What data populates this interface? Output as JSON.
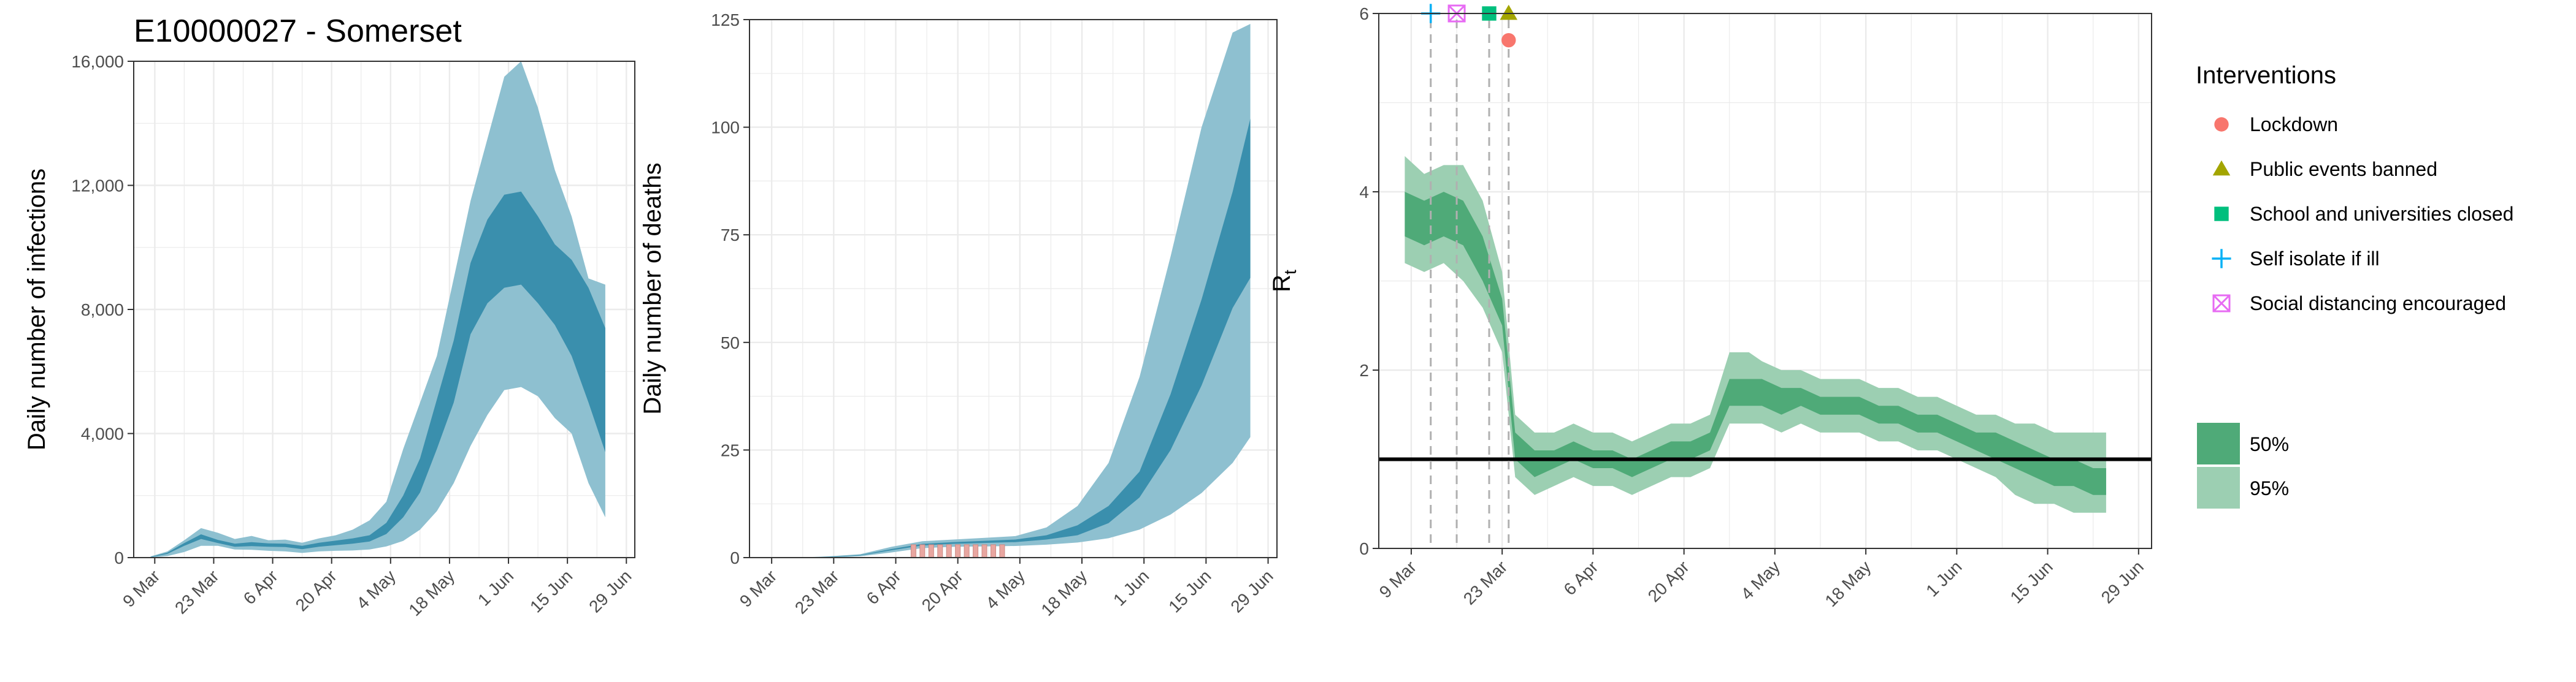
{
  "colors": {
    "infection_95": "#8ec0d0",
    "infection_50": "#3a8fad",
    "rt_95": "#9ccfb2",
    "rt_50": "#4faa78",
    "observed_bars": "#e8a6a0",
    "threshold_line": "#000000",
    "grid": "#ebebeb",
    "lockdown": "#F8766D",
    "public_events": "#A3A500",
    "school": "#00BF7D",
    "self_isolate": "#00B0F6",
    "social_distancing": "#E76BF3"
  },
  "chart_data": [
    {
      "type": "area",
      "title": "E10000027 - Somerset",
      "ylabel": "Daily number of infections",
      "xlabel": "",
      "x_ticks": [
        "9 Mar",
        "23 Mar",
        "6 Apr",
        "20 Apr",
        "4 May",
        "18 May",
        "1 Jun",
        "15 Jun",
        "29 Jun"
      ],
      "y_ticks": [
        "0",
        "4,000",
        "8,000",
        "12,000",
        "16,000"
      ],
      "ylim": [
        0,
        16000
      ],
      "xlim": [
        "2020-03-04",
        "2020-07-01"
      ],
      "grid": true,
      "x_dates": [
        "2020-03-08",
        "2020-03-12",
        "2020-03-16",
        "2020-03-20",
        "2020-03-24",
        "2020-03-28",
        "2020-04-01",
        "2020-04-05",
        "2020-04-09",
        "2020-04-13",
        "2020-04-17",
        "2020-04-21",
        "2020-04-25",
        "2020-04-29",
        "2020-05-03",
        "2020-05-07",
        "2020-05-11",
        "2020-05-15",
        "2020-05-19",
        "2020-05-23",
        "2020-05-27",
        "2020-05-31",
        "2020-06-04",
        "2020-06-08",
        "2020-06-12",
        "2020-06-16",
        "2020-06-20",
        "2020-06-24"
      ],
      "series": [
        {
          "band": "95%",
          "low": [
            0,
            50,
            180,
            380,
            380,
            260,
            250,
            220,
            200,
            150,
            200,
            220,
            230,
            260,
            360,
            540,
            900,
            1500,
            2400,
            3600,
            4600,
            5400,
            5500,
            5200,
            4500,
            4000,
            2400,
            1300
          ],
          "high": [
            40,
            200,
            560,
            950,
            800,
            600,
            700,
            560,
            580,
            480,
            620,
            720,
            900,
            1200,
            1800,
            3500,
            5000,
            6500,
            9000,
            11500,
            13500,
            15500,
            16000,
            14500,
            12500,
            11000,
            9000,
            8800
          ]
        },
        {
          "band": "50%",
          "low": [
            10,
            120,
            380,
            600,
            470,
            350,
            370,
            350,
            340,
            270,
            350,
            400,
            450,
            520,
            760,
            1300,
            2100,
            3500,
            5000,
            7200,
            8200,
            8700,
            8800,
            8200,
            7500,
            6500,
            5000,
            3400
          ],
          "high": [
            20,
            160,
            470,
            750,
            570,
            450,
            500,
            460,
            450,
            380,
            480,
            550,
            620,
            720,
            1120,
            2000,
            3200,
            5100,
            7000,
            9500,
            10900,
            11700,
            11800,
            11000,
            10100,
            9600,
            8700,
            7400
          ]
        }
      ]
    },
    {
      "type": "area",
      "title": "",
      "ylabel": "Daily number of deaths",
      "xlabel": "",
      "x_ticks": [
        "9 Mar",
        "23 Mar",
        "6 Apr",
        "20 Apr",
        "4 May",
        "18 May",
        "1 Jun",
        "15 Jun",
        "29 Jun"
      ],
      "y_ticks": [
        "0",
        "25",
        "50",
        "75",
        "100",
        "125"
      ],
      "ylim": [
        0,
        125
      ],
      "xlim": [
        "2020-03-04",
        "2020-07-01"
      ],
      "grid": true,
      "x_dates": [
        "2020-03-08",
        "2020-03-15",
        "2020-03-22",
        "2020-03-29",
        "2020-04-05",
        "2020-04-12",
        "2020-04-19",
        "2020-04-26",
        "2020-05-03",
        "2020-05-10",
        "2020-05-17",
        "2020-05-24",
        "2020-05-31",
        "2020-06-07",
        "2020-06-14",
        "2020-06-21",
        "2020-06-25"
      ],
      "series": [
        {
          "band": "95%",
          "low": [
            0,
            0,
            0,
            0.3,
            1.2,
            2.2,
            2.5,
            2.6,
            2.7,
            3,
            3.5,
            4.5,
            6.5,
            10,
            15,
            22,
            28
          ],
          "high": [
            0,
            0,
            0.3,
            0.8,
            2.5,
            3.8,
            4.2,
            4.6,
            5,
            7,
            12,
            22,
            42,
            70,
            100,
            122,
            124
          ]
        },
        {
          "band": "50%",
          "low": [
            0,
            0,
            0.1,
            0.5,
            1.7,
            2.8,
            3.2,
            3.4,
            3.6,
            4.2,
            5.2,
            8,
            14,
            25,
            40,
            58,
            65
          ],
          "high": [
            0,
            0,
            0.2,
            0.6,
            2.0,
            3.2,
            3.6,
            3.9,
            4.2,
            5.2,
            7.5,
            12,
            20,
            38,
            60,
            85,
            102
          ]
        }
      ],
      "observed": {
        "x_dates": [
          "2020-04-10",
          "2020-04-12",
          "2020-04-14",
          "2020-04-16",
          "2020-04-18",
          "2020-04-20",
          "2020-04-22",
          "2020-04-24",
          "2020-04-26",
          "2020-04-28",
          "2020-04-30"
        ],
        "values": [
          3,
          3,
          3,
          3,
          3,
          3,
          3,
          3,
          3,
          3,
          3
        ]
      }
    },
    {
      "type": "area",
      "title": "",
      "ylabel": "R",
      "ylabel_sub": "t",
      "xlabel": "",
      "x_ticks": [
        "9 Mar",
        "23 Mar",
        "6 Apr",
        "20 Apr",
        "4 May",
        "18 May",
        "1 Jun",
        "15 Jun",
        "29 Jun"
      ],
      "y_ticks": [
        "0",
        "2",
        "4",
        "6"
      ],
      "ylim": [
        0,
        6
      ],
      "xlim": [
        "2020-03-04",
        "2020-07-01"
      ],
      "grid": true,
      "x_dates": [
        "2020-03-08",
        "2020-03-11",
        "2020-03-14",
        "2020-03-17",
        "2020-03-20",
        "2020-03-23",
        "2020-03-25",
        "2020-03-28",
        "2020-03-31",
        "2020-04-03",
        "2020-04-06",
        "2020-04-09",
        "2020-04-12",
        "2020-04-15",
        "2020-04-18",
        "2020-04-21",
        "2020-04-24",
        "2020-04-27",
        "2020-04-30",
        "2020-05-02",
        "2020-05-05",
        "2020-05-08",
        "2020-05-11",
        "2020-05-14",
        "2020-05-17",
        "2020-05-20",
        "2020-05-23",
        "2020-05-26",
        "2020-05-29",
        "2020-06-01",
        "2020-06-04",
        "2020-06-07",
        "2020-06-10",
        "2020-06-13",
        "2020-06-16",
        "2020-06-19",
        "2020-06-22",
        "2020-06-24"
      ],
      "series": [
        {
          "band": "95%",
          "low": [
            3.2,
            3.1,
            3.2,
            3.0,
            2.7,
            2.2,
            0.8,
            0.6,
            0.7,
            0.8,
            0.7,
            0.7,
            0.6,
            0.7,
            0.8,
            0.8,
            0.9,
            1.4,
            1.4,
            1.4,
            1.3,
            1.4,
            1.3,
            1.3,
            1.3,
            1.2,
            1.2,
            1.1,
            1.1,
            1.0,
            0.9,
            0.8,
            0.6,
            0.5,
            0.5,
            0.4,
            0.4,
            0.4
          ],
          "high": [
            4.4,
            4.2,
            4.3,
            4.3,
            3.9,
            3.1,
            1.5,
            1.3,
            1.3,
            1.4,
            1.3,
            1.3,
            1.2,
            1.3,
            1.4,
            1.4,
            1.5,
            2.2,
            2.2,
            2.1,
            2.0,
            2.0,
            1.9,
            1.9,
            1.9,
            1.8,
            1.8,
            1.7,
            1.7,
            1.6,
            1.5,
            1.5,
            1.4,
            1.4,
            1.3,
            1.3,
            1.3,
            1.3
          ]
        },
        {
          "band": "50%",
          "low": [
            3.5,
            3.4,
            3.5,
            3.4,
            3.0,
            2.5,
            1.0,
            0.8,
            0.9,
            1.0,
            0.9,
            0.9,
            0.8,
            0.9,
            1.0,
            1.0,
            1.1,
            1.6,
            1.6,
            1.6,
            1.5,
            1.6,
            1.5,
            1.5,
            1.5,
            1.4,
            1.4,
            1.3,
            1.3,
            1.2,
            1.1,
            1.0,
            0.9,
            0.8,
            0.7,
            0.7,
            0.6,
            0.6
          ],
          "high": [
            4.0,
            3.9,
            4.0,
            3.9,
            3.5,
            2.8,
            1.3,
            1.1,
            1.1,
            1.2,
            1.1,
            1.1,
            1.0,
            1.1,
            1.2,
            1.2,
            1.3,
            1.9,
            1.9,
            1.9,
            1.8,
            1.8,
            1.7,
            1.7,
            1.7,
            1.6,
            1.6,
            1.5,
            1.5,
            1.4,
            1.3,
            1.3,
            1.2,
            1.1,
            1.0,
            1.0,
            0.9,
            0.9
          ]
        }
      ],
      "threshold": 1,
      "interventions": [
        {
          "name": "Self isolate if ill",
          "date": "2020-03-12",
          "marker": "plus",
          "y": 6.0
        },
        {
          "name": "Social distancing encouraged",
          "date": "2020-03-16",
          "marker": "boxx",
          "y": 6.0
        },
        {
          "name": "School and universities closed",
          "date": "2020-03-21",
          "marker": "square",
          "y": 6.0
        },
        {
          "name": "Public events banned",
          "date": "2020-03-24",
          "marker": "triangle",
          "y": 6.0
        },
        {
          "name": "Lockdown",
          "date": "2020-03-24",
          "marker": "circle",
          "y": 5.7
        }
      ]
    }
  ],
  "legend": {
    "title": "Interventions",
    "items": [
      {
        "label": "Lockdown",
        "marker": "circle"
      },
      {
        "label": "Public events banned",
        "marker": "triangle"
      },
      {
        "label": "School and universities closed",
        "marker": "square"
      },
      {
        "label": "Self isolate if ill",
        "marker": "plus"
      },
      {
        "label": "Social distancing encouraged",
        "marker": "boxx"
      }
    ],
    "bands": [
      {
        "label": "50%"
      },
      {
        "label": "95%"
      }
    ]
  }
}
